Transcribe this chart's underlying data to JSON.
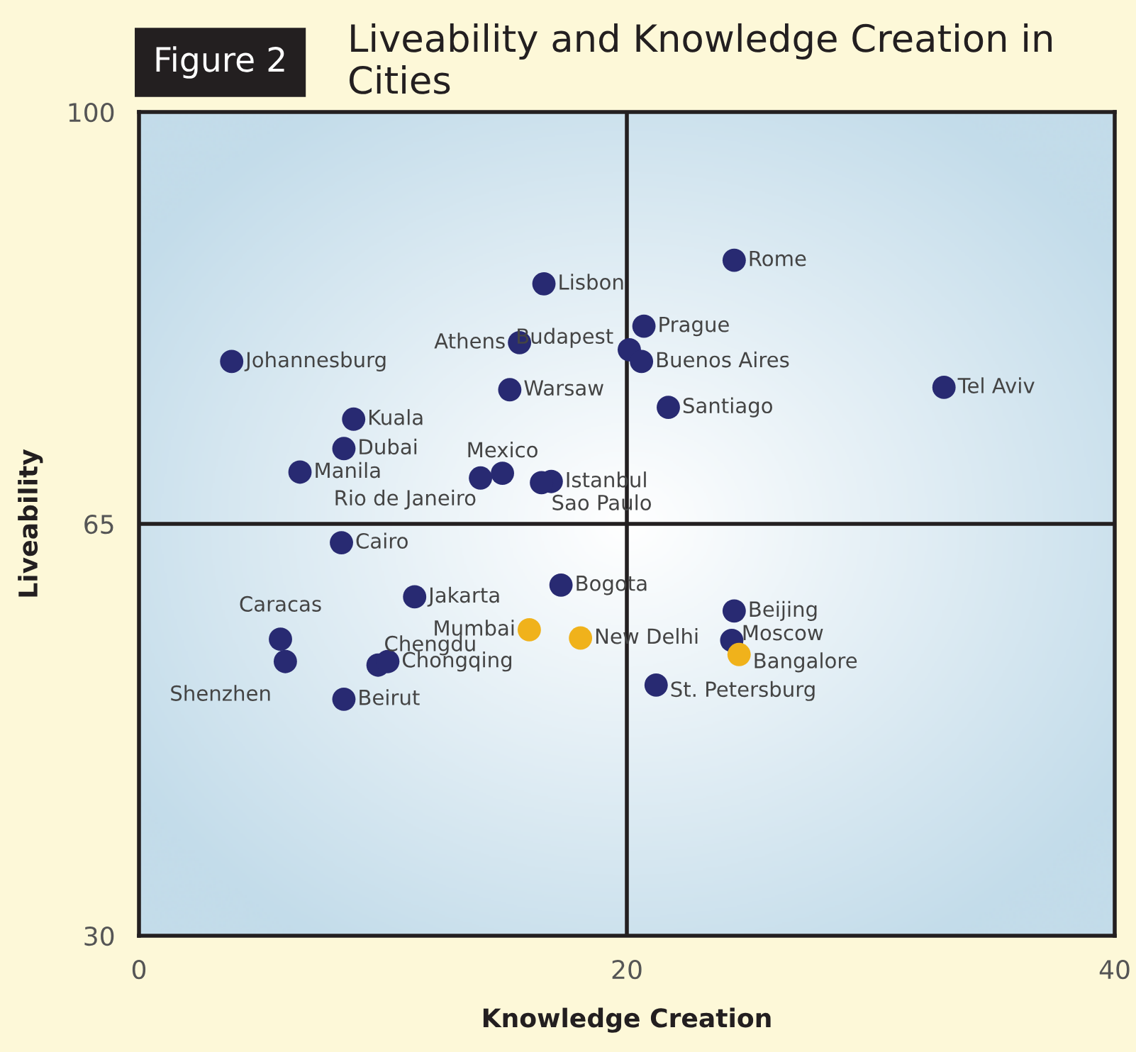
{
  "chart_data": {
    "type": "scatter",
    "title": "Liveability and Knowledge Creation in Cities",
    "xlabel": "Knowledge Creation",
    "ylabel": "Liveability",
    "xlim": [
      0,
      40
    ],
    "ylim": [
      30,
      100
    ],
    "xticks": [
      0,
      20,
      40
    ],
    "yticks": [
      30,
      65,
      100
    ],
    "marker": "circle",
    "series": [
      {
        "color": "#282a72",
        "x": [
          16.6,
          24.4,
          20.7,
          20.1,
          20.6,
          15.6,
          3.8,
          15.2,
          21.7,
          33.0,
          8.8,
          8.4,
          6.6,
          14.0,
          14.9,
          16.9,
          16.5,
          8.3,
          11.3,
          17.3,
          5.8,
          6.0,
          9.8,
          10.2,
          8.4,
          24.4,
          24.3,
          21.2
        ],
        "values": [
          85.4,
          87.4,
          81.8,
          79.8,
          78.8,
          80.4,
          78.8,
          76.4,
          74.9,
          76.6,
          73.9,
          71.4,
          69.4,
          68.9,
          69.3,
          68.6,
          68.5,
          63.4,
          58.8,
          59.8,
          55.2,
          53.3,
          53.0,
          53.3,
          50.1,
          57.6,
          55.1,
          51.3
        ]
      },
      {
        "color": "#f0b21b",
        "x": [
          16.0,
          18.1,
          24.6
        ],
        "values": [
          56.0,
          55.3,
          53.9
        ]
      }
    ],
    "ref_lines": [
      {
        "axis": "x",
        "value": 20,
        "color": "#231f20"
      },
      {
        "axis": "y",
        "value": 65,
        "color": "#231f20"
      }
    ],
    "annotations": [
      "Figure 2",
      {
        "text": "Lisbon",
        "x": 16.6,
        "y": 85.4
      },
      {
        "text": "Rome",
        "x": 24.4,
        "y": 87.4
      },
      {
        "text": "Prague",
        "x": 20.7,
        "y": 81.8
      },
      {
        "text": "Budapest",
        "x": 20.1,
        "y": 79.8
      },
      {
        "text": "Buenos Aires",
        "x": 20.6,
        "y": 78.8
      },
      {
        "text": "Athens",
        "x": 15.6,
        "y": 80.4
      },
      {
        "text": "Johannesburg",
        "x": 3.8,
        "y": 78.8
      },
      {
        "text": "Warsaw",
        "x": 15.2,
        "y": 76.4
      },
      {
        "text": "Santiago",
        "x": 21.7,
        "y": 74.9
      },
      {
        "text": "Tel Aviv",
        "x": 33.0,
        "y": 76.6
      },
      {
        "text": "Kuala",
        "x": 8.8,
        "y": 73.9
      },
      {
        "text": "Dubai",
        "x": 8.4,
        "y": 71.4
      },
      {
        "text": "Manila",
        "x": 6.6,
        "y": 69.4
      },
      {
        "text": "Rio de Janeiro",
        "x": 14.0,
        "y": 68.9
      },
      {
        "text": "Mexico",
        "x": 14.9,
        "y": 69.3
      },
      {
        "text": "Istanbul",
        "x": 16.9,
        "y": 68.6
      },
      {
        "text": "Sao Paulo",
        "x": 16.5,
        "y": 68.5
      },
      {
        "text": "Cairo",
        "x": 8.3,
        "y": 63.4
      },
      {
        "text": "Jakarta",
        "x": 11.3,
        "y": 58.8
      },
      {
        "text": "Bogota",
        "x": 17.3,
        "y": 59.8
      },
      {
        "text": "Caracas",
        "x": 5.8,
        "y": 55.2
      },
      {
        "text": "Shenzhen",
        "x": 6.0,
        "y": 53.3
      },
      {
        "text": "Chengdu",
        "x": 9.8,
        "y": 53.0
      },
      {
        "text": "Chongqing",
        "x": 10.2,
        "y": 53.3
      },
      {
        "text": "Beirut",
        "x": 8.4,
        "y": 50.1
      },
      {
        "text": "Beijing",
        "x": 24.4,
        "y": 57.6
      },
      {
        "text": "Moscow",
        "x": 24.3,
        "y": 55.1
      },
      {
        "text": "St. Petersburg",
        "x": 21.2,
        "y": 51.3
      },
      {
        "text": "Mumbai",
        "x": 16.0,
        "y": 56.0
      },
      {
        "text": "New Delhi",
        "x": 18.1,
        "y": 55.3
      },
      {
        "text": "Bangalore",
        "x": 24.6,
        "y": 53.9
      }
    ]
  }
}
